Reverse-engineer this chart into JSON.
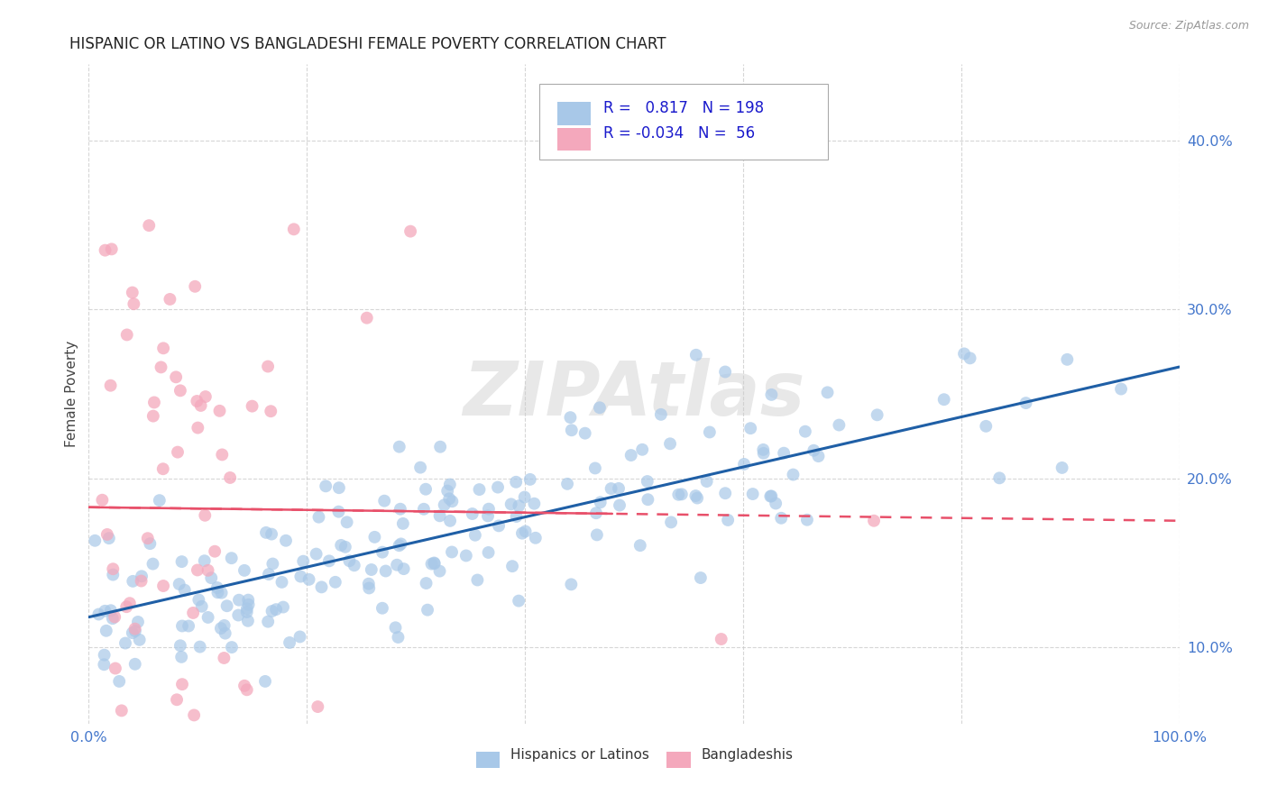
{
  "title": "HISPANIC OR LATINO VS BANGLADESHI FEMALE POVERTY CORRELATION CHART",
  "source": "Source: ZipAtlas.com",
  "ylabel": "Female Poverty",
  "yticks": [
    0.1,
    0.2,
    0.3,
    0.4
  ],
  "ytick_labels": [
    "10.0%",
    "20.0%",
    "30.0%",
    "40.0%"
  ],
  "xlim": [
    0.0,
    1.0
  ],
  "ylim": [
    0.055,
    0.445
  ],
  "watermark": "ZIPAtlas",
  "blue_color": "#a8c8e8",
  "pink_color": "#f4a8bc",
  "blue_line_color": "#1f5fa6",
  "pink_line_color": "#e8506a",
  "blue_r": 0.817,
  "pink_r": -0.034,
  "blue_n": 198,
  "pink_n": 56,
  "grid_color": "#cccccc",
  "background_color": "#ffffff",
  "title_color": "#222222",
  "axis_label_color": "#444444",
  "legend_text_color": "#1a1acc",
  "tick_label_color": "#4477cc",
  "blue_line_intercept": 0.118,
  "blue_line_slope": 0.148,
  "pink_line_intercept": 0.183,
  "pink_line_slope": -0.008
}
